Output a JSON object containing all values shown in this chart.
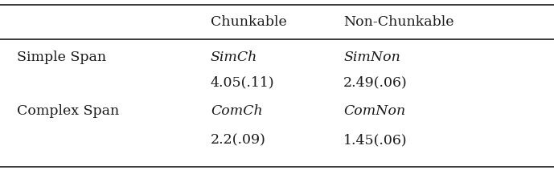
{
  "col_headers": [
    "",
    "Chunkable",
    "Non-Chunkable"
  ],
  "rows": [
    [
      "Simple Span",
      "SimCh",
      "SimNon"
    ],
    [
      "",
      "4.05(.11)",
      "2.49(.06)"
    ],
    [
      "Complex Span",
      "ComCh",
      "ComNon"
    ],
    [
      "",
      "2.2(.09)",
      "1.45(.06)"
    ]
  ],
  "italic_rows": [
    0,
    2
  ],
  "bg_color": "#ffffff",
  "text_color": "#1a1a1a",
  "line_color": "#2a2a2a",
  "font_size": 12.5,
  "header_font_size": 12.5
}
